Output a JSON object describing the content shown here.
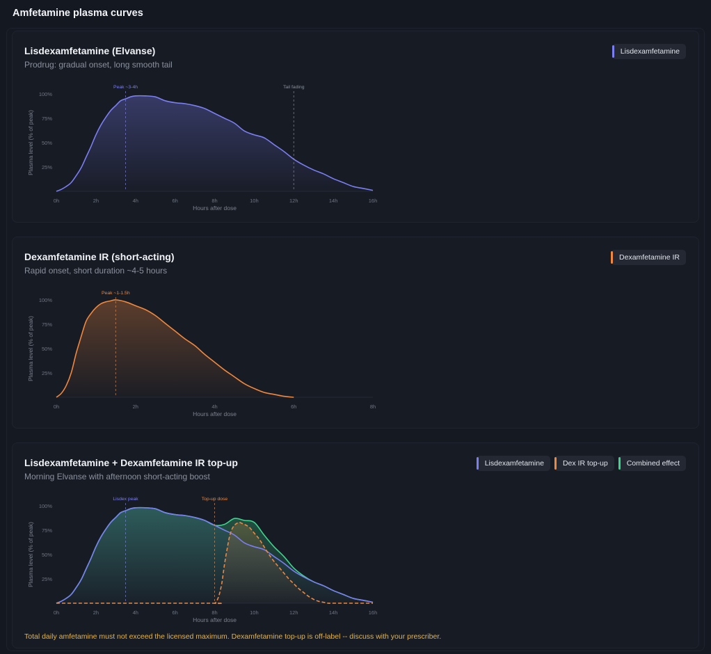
{
  "page_title": "Amfetamine plasma curves",
  "footnote": "Total daily amfetamine must not exceed the licensed maximum. Dexamfetamine top-up is off-label -- discuss with your prescriber.",
  "colors": {
    "lisdex": "#7b7ff2",
    "dex": "#f0883e",
    "combined": "#3dd68c"
  },
  "charts": [
    {
      "title": "Lisdexamfetamine (Elvanse)",
      "subtitle": "Prodrug: gradual onset, long smooth tail",
      "legend": [
        {
          "label": "Lisdexamfetamine",
          "color": "#7b7ff2"
        }
      ]
    },
    {
      "title": "Dexamfetamine IR (short-acting)",
      "subtitle": "Rapid onset, short duration ~4-5 hours",
      "legend": [
        {
          "label": "Dexamfetamine IR",
          "color": "#f0883e"
        }
      ]
    },
    {
      "title": "Lisdexamfetamine + Dexamfetamine IR top-up",
      "subtitle": "Morning Elvanse with afternoon short-acting boost",
      "legend": [
        {
          "label": "Lisdexamfetamine",
          "color": "#7b7ff2"
        },
        {
          "label": "Dex IR top-up",
          "color": "#f0883e"
        },
        {
          "label": "Combined effect",
          "color": "#3dd68c"
        }
      ]
    }
  ],
  "chart_data": [
    {
      "type": "area",
      "title": "Lisdexamfetamine (Elvanse)",
      "xlabel": "Hours after dose",
      "ylabel": "Plasma level (% of peak)",
      "xlim": [
        0,
        16
      ],
      "ylim": [
        0,
        100
      ],
      "x_ticks": [
        0,
        2,
        4,
        6,
        8,
        10,
        12,
        14,
        16
      ],
      "x_tick_labels": [
        "0h",
        "2h",
        "4h",
        "6h",
        "8h",
        "10h",
        "12h",
        "14h",
        "16h"
      ],
      "y_ticks": [
        25,
        50,
        75,
        100
      ],
      "y_tick_labels": [
        "25%",
        "50%",
        "75%",
        "100%"
      ],
      "grid": false,
      "annotations": [
        {
          "x": 3.5,
          "label": "Peak ~3-4h",
          "color": "#7b7ff2"
        },
        {
          "x": 12,
          "label": "Tail fading",
          "color": "#8a909d"
        }
      ],
      "series": [
        {
          "name": "Lisdexamfetamine",
          "color": "#7b7ff2",
          "style": "solid",
          "x": [
            0,
            0.25,
            0.5,
            0.75,
            1,
            1.25,
            1.5,
            1.75,
            2,
            2.25,
            2.5,
            2.75,
            3,
            3.25,
            3.5,
            3.75,
            4,
            4.5,
            5,
            5.5,
            6,
            6.5,
            7,
            7.5,
            8,
            8.5,
            9,
            9.5,
            10,
            10.5,
            11,
            11.5,
            12,
            12.5,
            13,
            13.5,
            14,
            14.5,
            15,
            15.5,
            16
          ],
          "y": [
            0,
            2,
            5,
            9,
            16,
            24,
            35,
            46,
            58,
            68,
            76,
            83,
            88,
            93,
            95,
            97,
            98,
            98,
            97,
            93,
            91,
            90,
            88,
            85,
            80,
            75,
            70,
            62,
            58,
            55,
            48,
            41,
            33,
            27,
            22,
            18,
            13,
            9,
            5,
            3,
            1
          ]
        }
      ]
    },
    {
      "type": "area",
      "title": "Dexamfetamine IR (short-acting)",
      "xlabel": "Hours after dose",
      "ylabel": "Plasma level (% of peak)",
      "xlim": [
        0,
        8
      ],
      "ylim": [
        0,
        100
      ],
      "x_ticks": [
        0,
        2,
        4,
        6,
        8
      ],
      "x_tick_labels": [
        "0h",
        "2h",
        "4h",
        "6h",
        "8h"
      ],
      "y_ticks": [
        25,
        50,
        75,
        100
      ],
      "y_tick_labels": [
        "25%",
        "50%",
        "75%",
        "100%"
      ],
      "grid": false,
      "annotations": [
        {
          "x": 1.5,
          "label": "Peak ~1-1.5h",
          "color": "#f0883e"
        }
      ],
      "series": [
        {
          "name": "Dexamfetamine IR",
          "color": "#f0883e",
          "style": "solid",
          "x": [
            0,
            0.125,
            0.25,
            0.375,
            0.5,
            0.625,
            0.75,
            0.875,
            1,
            1.125,
            1.25,
            1.375,
            1.5,
            1.75,
            2,
            2.25,
            2.5,
            2.75,
            3,
            3.25,
            3.5,
            3.75,
            4,
            4.25,
            4.5,
            4.75,
            5,
            5.25,
            5.5,
            5.75,
            6
          ],
          "y": [
            0,
            4,
            12,
            25,
            45,
            62,
            78,
            86,
            92,
            96,
            98,
            99,
            100,
            98,
            94,
            90,
            84,
            76,
            68,
            60,
            53,
            44,
            36,
            28,
            21,
            14,
            9,
            5,
            3,
            1,
            0
          ]
        }
      ]
    },
    {
      "type": "area",
      "title": "Lisdexamfetamine + Dexamfetamine IR top-up",
      "xlabel": "Hours after dose",
      "ylabel": "Plasma level (% of peak)",
      "xlim": [
        0,
        16
      ],
      "ylim": [
        0,
        100
      ],
      "x_ticks": [
        0,
        2,
        4,
        6,
        8,
        10,
        12,
        14,
        16
      ],
      "x_tick_labels": [
        "0h",
        "2h",
        "4h",
        "6h",
        "8h",
        "10h",
        "12h",
        "14h",
        "16h"
      ],
      "y_ticks": [
        25,
        50,
        75,
        100
      ],
      "y_tick_labels": [
        "25%",
        "50%",
        "75%",
        "100%"
      ],
      "grid": false,
      "annotations": [
        {
          "x": 3.5,
          "label": "Lisdex peak",
          "color": "#7b7ff2"
        },
        {
          "x": 8,
          "label": "Top-up dose",
          "color": "#f0883e"
        }
      ],
      "series": [
        {
          "name": "Combined effect",
          "color": "#3dd68c",
          "style": "solid",
          "x": [
            0,
            0.25,
            0.5,
            0.75,
            1,
            1.25,
            1.5,
            1.75,
            2,
            2.25,
            2.5,
            2.75,
            3,
            3.25,
            3.5,
            3.75,
            4,
            4.5,
            5,
            5.5,
            6,
            6.5,
            7,
            7.5,
            8,
            8.5,
            9,
            9.5,
            10,
            10.5,
            11,
            11.5,
            12,
            12.5,
            13,
            13.5,
            14,
            14.5,
            15,
            15.5,
            16
          ],
          "y": [
            0,
            2,
            5,
            9,
            16,
            24,
            35,
            46,
            58,
            68,
            76,
            83,
            88,
            93,
            95,
            97,
            98,
            98,
            97,
            93,
            91,
            90,
            88,
            85,
            80,
            81,
            87,
            85,
            83,
            70,
            58,
            48,
            36,
            28,
            22,
            18,
            13,
            9,
            5,
            3,
            1
          ]
        },
        {
          "name": "Lisdexamfetamine",
          "color": "#7b7ff2",
          "style": "solid",
          "x": [
            0,
            0.25,
            0.5,
            0.75,
            1,
            1.25,
            1.5,
            1.75,
            2,
            2.25,
            2.5,
            2.75,
            3,
            3.25,
            3.5,
            3.75,
            4,
            4.5,
            5,
            5.5,
            6,
            6.5,
            7,
            7.5,
            8,
            8.5,
            9,
            9.5,
            10,
            10.5,
            11,
            11.5,
            12,
            12.5,
            13,
            13.5,
            14,
            14.5,
            15,
            15.5,
            16
          ],
          "y": [
            0,
            2,
            5,
            9,
            16,
            24,
            35,
            46,
            58,
            68,
            76,
            83,
            88,
            93,
            95,
            97,
            98,
            98,
            97,
            93,
            91,
            90,
            88,
            85,
            80,
            75,
            70,
            62,
            58,
            55,
            48,
            41,
            33,
            27,
            22,
            18,
            13,
            9,
            5,
            3,
            1
          ]
        },
        {
          "name": "Dex IR top-up",
          "color": "#f0883e",
          "style": "dashed",
          "x": [
            0,
            7.75,
            8,
            8.125,
            8.25,
            8.375,
            8.5,
            8.625,
            8.75,
            8.875,
            9,
            9.125,
            9.25,
            9.375,
            9.5,
            9.75,
            10,
            10.25,
            10.5,
            10.75,
            11,
            11.25,
            11.5,
            11.75,
            12,
            12.25,
            12.5,
            12.75,
            13,
            13.25,
            13.5,
            13.75,
            14,
            16
          ],
          "y": [
            0,
            0,
            0,
            3,
            10,
            22,
            40,
            55,
            68,
            76,
            80,
            82,
            83,
            82,
            81,
            78,
            72,
            66,
            58,
            50,
            43,
            37,
            31,
            25,
            20,
            15,
            11,
            7,
            4,
            2,
            1,
            0,
            0,
            0
          ]
        }
      ]
    }
  ]
}
